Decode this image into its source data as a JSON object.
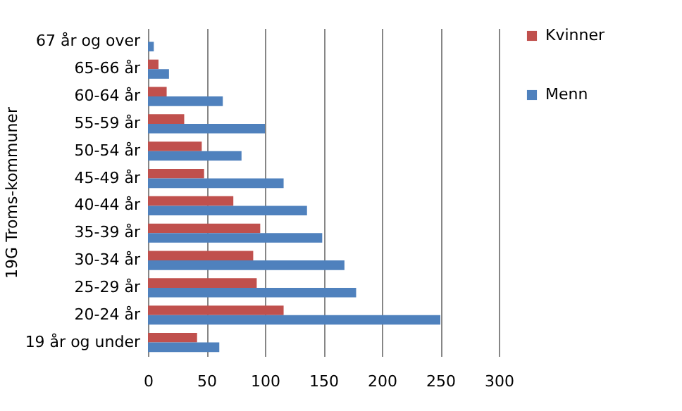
{
  "chart_data": {
    "type": "bar",
    "orientation": "horizontal",
    "ylabel": "19G Troms-kommuner",
    "categories": [
      "67 år og over",
      "65-66 år",
      "60-64 år",
      "55-59 år",
      "50-54 år",
      "45-49 år",
      "40-44 år",
      "35-39 år",
      "30-34 år",
      "25-29 år",
      "20-24 år",
      "19 år og under"
    ],
    "series": [
      {
        "name": "Kvinner",
        "color": "#c0504d",
        "values": [
          null,
          9,
          16,
          31,
          46,
          48,
          73,
          96,
          90,
          93,
          116,
          42
        ]
      },
      {
        "name": "Menn",
        "color": "#4f81bd",
        "values": [
          5,
          18,
          64,
          100,
          80,
          116,
          136,
          149,
          168,
          178,
          250,
          61
        ]
      }
    ],
    "xlim": [
      0,
      300
    ],
    "xticks": [
      0,
      50,
      100,
      150,
      200,
      250,
      300
    ],
    "grid": "x",
    "legend": "right"
  }
}
